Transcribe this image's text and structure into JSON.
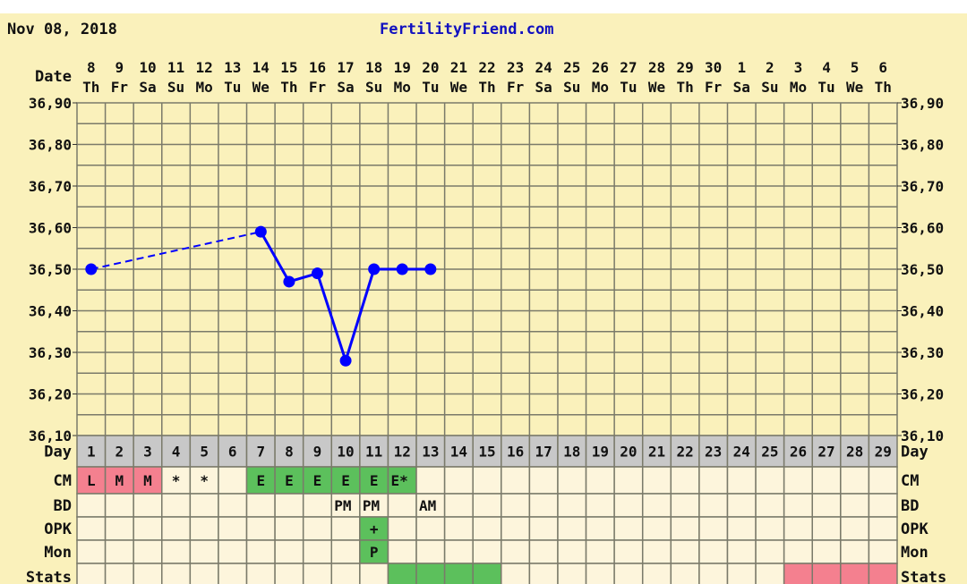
{
  "header": {
    "date": "Nov 08, 2018",
    "site": "FertilityFriend.com"
  },
  "row_labels": {
    "date": "Date",
    "day": "Day",
    "cm": "CM",
    "bd": "BD",
    "opk": "OPK",
    "mon": "Mon",
    "stats": "Stats"
  },
  "colors": {
    "background": "#faf1bb",
    "grid": "#7a7a6a",
    "cell": "#fdf5dc",
    "day_row": "#c8c8c8",
    "pink": "#f4808f",
    "green": "#5cc05c",
    "line": "#0000ff"
  },
  "chart_data": {
    "type": "line",
    "ylim": [
      36.1,
      36.9
    ],
    "yticks": [
      "36,90",
      "36,80",
      "36,70",
      "36,60",
      "36,50",
      "36,40",
      "36,30",
      "36,20",
      "36,10"
    ],
    "dates": [
      "8",
      "9",
      "10",
      "11",
      "12",
      "13",
      "14",
      "15",
      "16",
      "17",
      "18",
      "19",
      "20",
      "21",
      "22",
      "23",
      "24",
      "25",
      "26",
      "27",
      "28",
      "29",
      "30",
      "1",
      "2",
      "3",
      "4",
      "5",
      "6"
    ],
    "weekdays": [
      "Th",
      "Fr",
      "Sa",
      "Su",
      "Mo",
      "Tu",
      "We",
      "Th",
      "Fr",
      "Sa",
      "Su",
      "Mo",
      "Tu",
      "We",
      "Th",
      "Fr",
      "Sa",
      "Su",
      "Mo",
      "Tu",
      "We",
      "Th",
      "Fr",
      "Sa",
      "Su",
      "Mo",
      "Tu",
      "We",
      "Th"
    ],
    "cycle_days": [
      "1",
      "2",
      "3",
      "4",
      "5",
      "6",
      "7",
      "8",
      "9",
      "10",
      "11",
      "12",
      "13",
      "14",
      "15",
      "16",
      "17",
      "18",
      "19",
      "20",
      "21",
      "22",
      "23",
      "24",
      "25",
      "26",
      "27",
      "28",
      "29"
    ],
    "temperatures": [
      {
        "day": 1,
        "value": 36.5
      },
      {
        "day": 7,
        "value": 36.59
      },
      {
        "day": 8,
        "value": 36.47
      },
      {
        "day": 9,
        "value": 36.49
      },
      {
        "day": 10,
        "value": 36.28
      },
      {
        "day": 11,
        "value": 36.5
      },
      {
        "day": 12,
        "value": 36.5
      },
      {
        "day": 13,
        "value": 36.5
      }
    ],
    "dashed_segment": [
      1,
      7
    ],
    "cm": [
      {
        "day": 1,
        "text": "L",
        "color": "pink"
      },
      {
        "day": 2,
        "text": "M",
        "color": "pink"
      },
      {
        "day": 3,
        "text": "M",
        "color": "pink"
      },
      {
        "day": 4,
        "text": "*"
      },
      {
        "day": 5,
        "text": "*"
      },
      {
        "day": 7,
        "text": "E",
        "color": "green"
      },
      {
        "day": 8,
        "text": "E",
        "color": "green"
      },
      {
        "day": 9,
        "text": "E",
        "color": "green"
      },
      {
        "day": 10,
        "text": "E",
        "color": "green"
      },
      {
        "day": 11,
        "text": "E",
        "color": "green"
      },
      {
        "day": 12,
        "text": "E*",
        "color": "green"
      }
    ],
    "bd": [
      {
        "day": 10,
        "text": "PM"
      },
      {
        "day": 11,
        "text": "PM"
      },
      {
        "day": 13,
        "text": "AM"
      }
    ],
    "opk": [
      {
        "day": 11,
        "text": "+",
        "color": "green"
      }
    ],
    "mon": [
      {
        "day": 11,
        "text": "P",
        "color": "green"
      }
    ],
    "stats": [
      {
        "day": 12,
        "color": "green"
      },
      {
        "day": 13,
        "color": "green"
      },
      {
        "day": 14,
        "color": "green"
      },
      {
        "day": 15,
        "color": "green"
      },
      {
        "day": 26,
        "color": "pink"
      },
      {
        "day": 27,
        "color": "pink"
      },
      {
        "day": 28,
        "color": "pink"
      },
      {
        "day": 29,
        "color": "pink"
      }
    ]
  }
}
